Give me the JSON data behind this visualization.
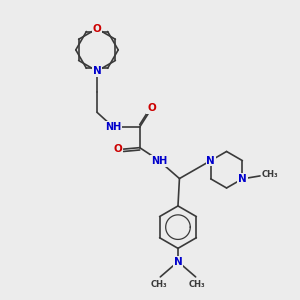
{
  "bg_color": "#ececec",
  "N_color": "#0000cc",
  "O_color": "#cc0000",
  "bond_color": "#3a3a3a",
  "line_width": 1.2,
  "font_size": 7.5,
  "fig_w": 3.0,
  "fig_h": 3.0,
  "dpi": 100,
  "xlim": [
    0,
    10
  ],
  "ylim": [
    0,
    10
  ]
}
